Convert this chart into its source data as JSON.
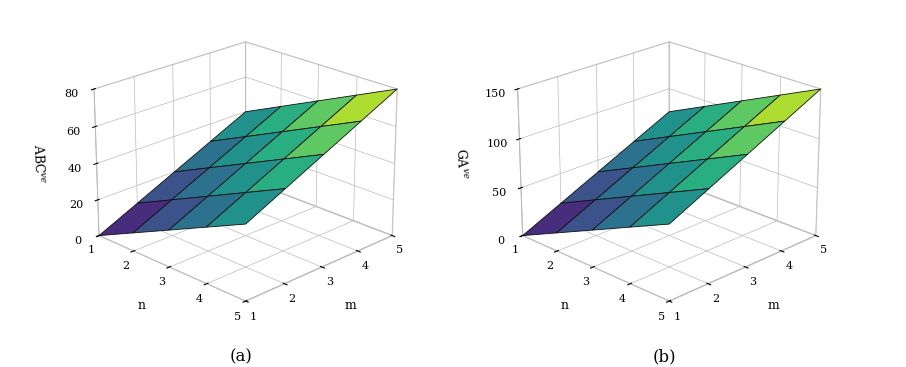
{
  "m_range": [
    1,
    2,
    3,
    4,
    5
  ],
  "n_range": [
    1,
    2,
    3,
    4,
    5
  ],
  "abc_scale": 10.0,
  "ga_scale": 18.75,
  "abc_zlim": [
    0,
    80
  ],
  "ga_zlim": [
    0,
    150
  ],
  "abc_zticks": [
    0,
    20,
    40,
    60,
    80
  ],
  "ga_zticks": [
    0,
    50,
    100,
    150
  ],
  "abc_zlabel": "ABC$^{ve}$",
  "ga_zlabel": "GA$^{ve}$",
  "xlabel": "m",
  "ylabel": "n",
  "sub_a": "(a)",
  "sub_b": "(b)",
  "elev": 22,
  "azim_a": -135,
  "azim_b": -135,
  "colormap": "viridis",
  "background_color": "white",
  "pane_color": [
    1.0,
    1.0,
    1.0,
    1.0
  ],
  "grid_color": "#bbbbbb",
  "edge_color": "#111111",
  "edge_lw": 0.6
}
